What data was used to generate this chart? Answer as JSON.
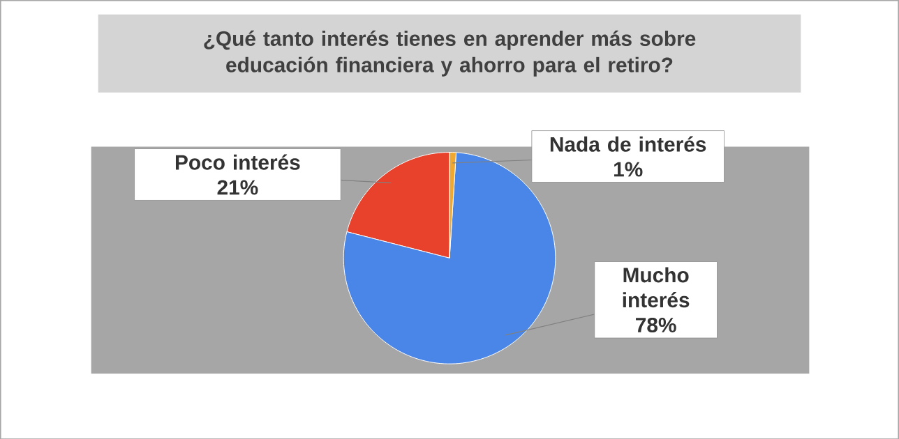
{
  "chart_data": {
    "type": "pie",
    "title": "¿Qué tanto interés tienes en aprender más sobre educación financiera y ahorro para el retiro?",
    "categories": [
      "Poco interés",
      "Mucho interés",
      "Nada de interés"
    ],
    "values": [
      21,
      78,
      1
    ],
    "value_labels": [
      "21%",
      "78%",
      "1%"
    ],
    "colors": [
      "#e8412c",
      "#4a86e8",
      "#f0a830"
    ]
  }
}
